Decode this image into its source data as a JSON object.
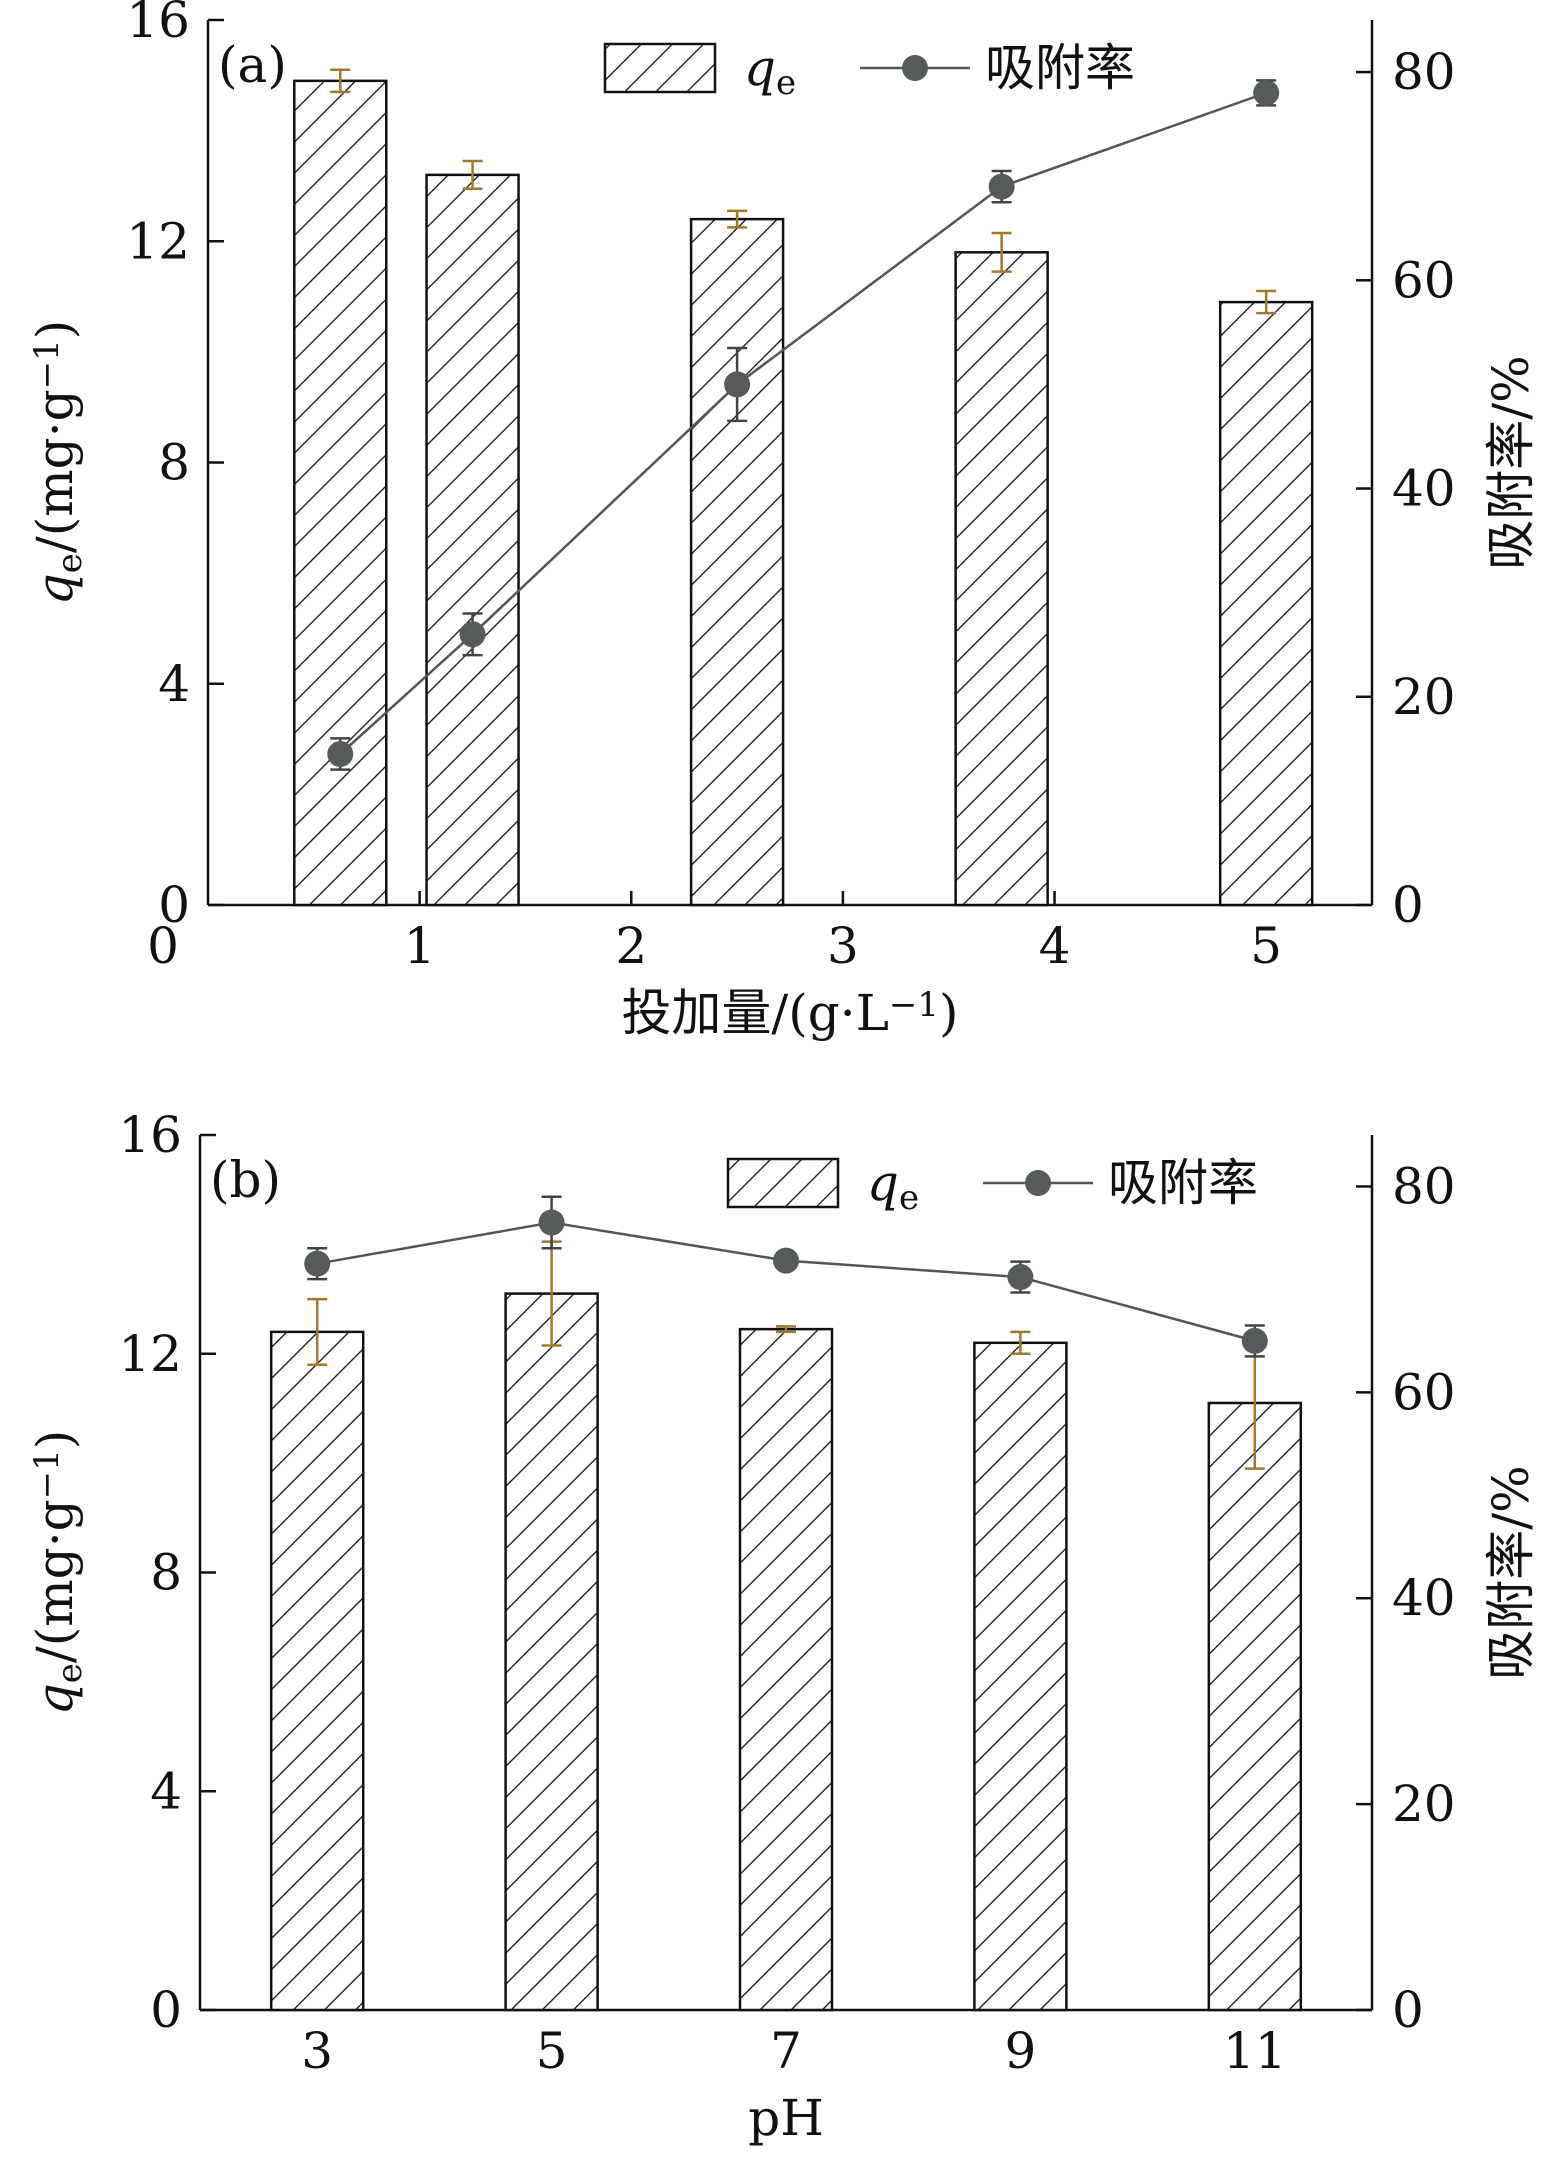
{
  "chart_data": [
    {
      "type": "bar",
      "panel_label": "(a)",
      "xlabel": "投加量/(g·L⁻¹)",
      "ylabel_left": "qₑ/(mg·g⁻¹)",
      "ylabel_right": "吸附率/%",
      "xlim": [
        0,
        5.5
      ],
      "x_ticks": [
        "0",
        "1",
        "2",
        "3",
        "4",
        "5"
      ],
      "ylim_left": [
        0,
        16
      ],
      "y_ticks_left": [
        "0",
        "4",
        "8",
        "12",
        "16"
      ],
      "ylim_right": [
        0,
        85
      ],
      "y_ticks_right": [
        "0",
        "20",
        "40",
        "60",
        "80"
      ],
      "legend": {
        "placement": "top-center",
        "entries": [
          "qₑ",
          "吸附率"
        ]
      },
      "series": [
        {
          "name": "qₑ",
          "kind": "bar",
          "axis": "left",
          "x": [
            0.625,
            1.25,
            2.5,
            3.75,
            5.0
          ],
          "values": [
            14.9,
            13.2,
            12.4,
            11.8,
            10.9
          ],
          "error": [
            0.2,
            0.25,
            0.15,
            0.35,
            0.2
          ]
        },
        {
          "name": "吸附率",
          "kind": "line",
          "axis": "right",
          "x": [
            0.625,
            1.25,
            2.5,
            3.75,
            5.0
          ],
          "values": [
            14.5,
            26,
            50,
            69,
            78
          ],
          "error": [
            1.5,
            2.0,
            3.5,
            1.5,
            1.2
          ]
        }
      ],
      "colors": {
        "bar_fill": "#ffffff",
        "hatch": "#111111",
        "bar_error": "#a07a2a",
        "line": "#555555",
        "marker": "#555b5b"
      }
    },
    {
      "type": "bar",
      "panel_label": "(b)",
      "xlabel": "pH",
      "ylabel_left": "qₑ/(mg·g⁻¹)",
      "ylabel_right": "吸附率/%",
      "categories": [
        "3",
        "5",
        "7",
        "9",
        "11"
      ],
      "ylim_left": [
        0,
        16
      ],
      "y_ticks_left": [
        "0",
        "4",
        "8",
        "12",
        "16"
      ],
      "ylim_right": [
        0,
        85
      ],
      "y_ticks_right": [
        "0",
        "20",
        "40",
        "60",
        "80"
      ],
      "legend": {
        "placement": "top-right",
        "entries": [
          "qₑ",
          "吸附率"
        ]
      },
      "series": [
        {
          "name": "qₑ",
          "kind": "bar",
          "axis": "left",
          "values": [
            12.4,
            13.1,
            12.45,
            12.2,
            11.1
          ],
          "error": [
            0.6,
            0.95,
            0.05,
            0.2,
            1.2
          ]
        },
        {
          "name": "吸附率",
          "kind": "line",
          "axis": "right",
          "values": [
            72.5,
            76.5,
            72.8,
            71.2,
            65
          ],
          "error": [
            1.5,
            2.5,
            0.5,
            1.5,
            1.5
          ]
        }
      ],
      "colors": {
        "bar_fill": "#ffffff",
        "hatch": "#111111",
        "bar_error": "#a07a2a",
        "line": "#555555",
        "marker": "#555b5b"
      }
    }
  ]
}
